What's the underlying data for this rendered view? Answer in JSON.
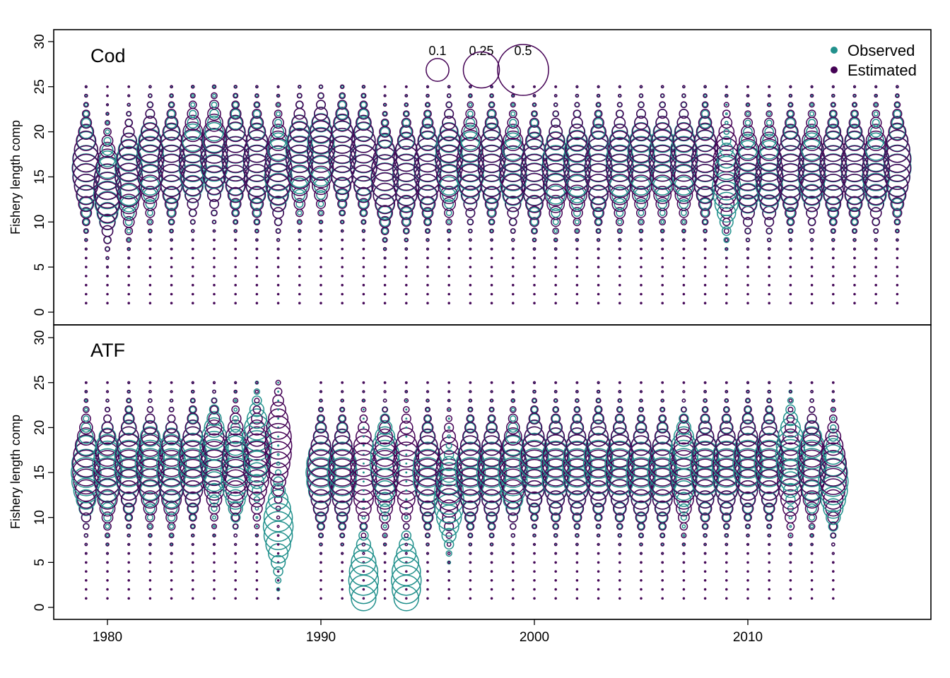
{
  "chart_data": {
    "type": "scatter",
    "subtype": "bubble",
    "colors": {
      "observed": "#21908C",
      "estimated": "#440154"
    },
    "legend": {
      "placement": "top-right",
      "entries": [
        {
          "label": "Observed",
          "color": "#21908C"
        },
        {
          "label": "Estimated",
          "color": "#440154"
        }
      ]
    },
    "size_scale": {
      "values": [
        0.1,
        0.25,
        0.5
      ],
      "labels": [
        "0.1",
        "0.25",
        "0.5"
      ]
    },
    "x_axis": {
      "ticks": [
        1980,
        1990,
        2000,
        2010
      ],
      "labels": [
        "1980",
        "1990",
        "2000",
        "2010"
      ],
      "range": [
        1977.2,
        2018.3
      ]
    },
    "panels": [
      {
        "title": "Cod",
        "ylabel": "Fishery length comp",
        "ylim": [
          -1,
          31
        ],
        "yticks": [
          0,
          5,
          10,
          15,
          20,
          25,
          30
        ],
        "ytick_labels": [
          "0",
          "5",
          "10",
          "15",
          "20",
          "25",
          "30"
        ],
        "length_bins": {
          "min": 1,
          "max": 25
        },
        "years": [
          1979,
          1980,
          1981,
          1982,
          1983,
          1984,
          1985,
          1986,
          1987,
          1988,
          1989,
          1990,
          1991,
          1992,
          1993,
          1994,
          1995,
          1996,
          1997,
          1998,
          1999,
          2000,
          2001,
          2002,
          2003,
          2004,
          2005,
          2006,
          2007,
          2008,
          2009,
          2010,
          2011,
          2012,
          2013,
          2014,
          2015,
          2016,
          2017
        ],
        "estimated_mode": [
          16,
          14,
          15,
          16.5,
          16.5,
          17,
          17.5,
          17,
          16.5,
          16,
          17,
          17.5,
          17.5,
          17,
          15,
          15.5,
          16,
          16.5,
          16.5,
          16.5,
          16,
          15.5,
          15.5,
          16,
          16,
          16,
          16.5,
          16.5,
          16.5,
          16.5,
          16,
          15.5,
          15.5,
          16,
          16,
          16,
          16,
          16,
          16.5
        ],
        "observed_mode": [
          16,
          13.5,
          15.5,
          17,
          16.5,
          16.5,
          17,
          17,
          16.5,
          15.5,
          17.5,
          18,
          17.5,
          17,
          15,
          15.5,
          16,
          17,
          16,
          16.5,
          15.5,
          15.5,
          16,
          16.5,
          16,
          16.5,
          17,
          17,
          17,
          16.5,
          14,
          15,
          15,
          16,
          15.5,
          16,
          16,
          15.5,
          16.5
        ],
        "estimated_peak": 0.14,
        "observed_peak": 0.15
      },
      {
        "title": "ATF",
        "ylabel": "Fishery length comp",
        "ylim": [
          -1,
          31
        ],
        "yticks": [
          0,
          5,
          10,
          15,
          20,
          25,
          30
        ],
        "ytick_labels": [
          "0",
          "5",
          "10",
          "15",
          "20",
          "25",
          "30"
        ],
        "length_bins": {
          "min": 1,
          "max": 25
        },
        "years": [
          1979,
          1980,
          1981,
          1982,
          1983,
          1984,
          1985,
          1986,
          1987,
          1988,
          1990,
          1991,
          1992,
          1993,
          1994,
          1995,
          1996,
          1997,
          1998,
          1999,
          2000,
          2001,
          2002,
          2003,
          2004,
          2005,
          2006,
          2007,
          2008,
          2009,
          2010,
          2011,
          2012,
          2013,
          2014
        ],
        "estimated_mode": [
          15.5,
          15,
          16,
          15.5,
          15,
          16,
          16,
          16,
          16,
          18,
          15,
          15,
          15,
          15,
          15.5,
          15,
          14.5,
          15,
          15,
          15.5,
          16,
          15.5,
          15.5,
          16,
          15.5,
          15,
          15,
          15,
          15.5,
          15.5,
          16,
          16,
          15,
          15.5,
          15
        ],
        "observed_mode": [
          15,
          15.5,
          16,
          16,
          15.5,
          16,
          17,
          15,
          18,
          9,
          15,
          15,
          3,
          16,
          3,
          15,
          12,
          15,
          15,
          15,
          16,
          15.5,
          15.5,
          16,
          15.5,
          15,
          15,
          16,
          15.5,
          15.5,
          16,
          16,
          17,
          16,
          14
        ],
        "estimated_peak": 0.14,
        "observed_peak": 0.17
      }
    ]
  }
}
